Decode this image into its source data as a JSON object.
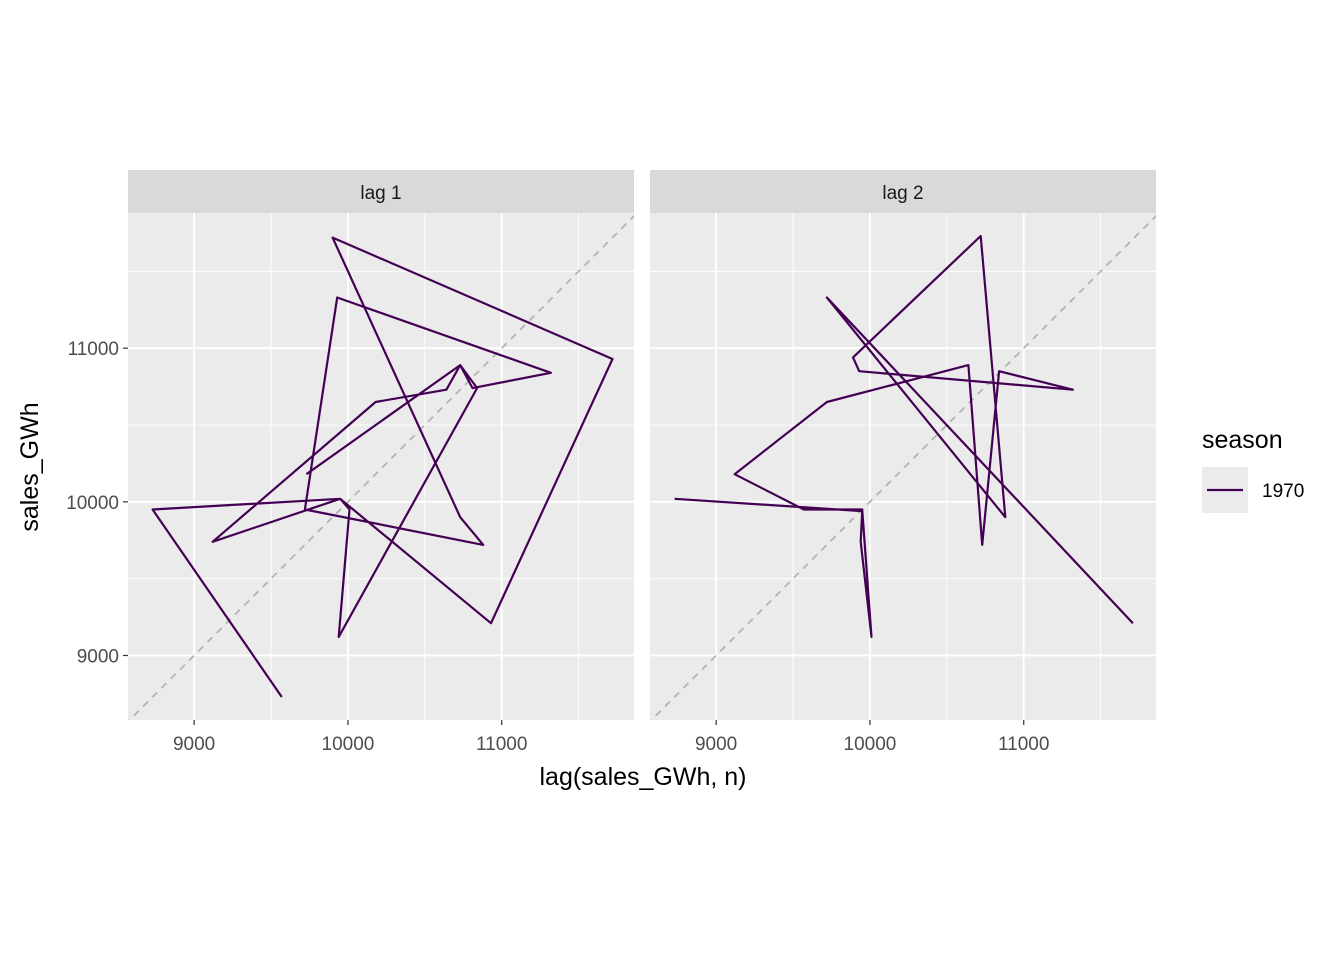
{
  "chart_data": {
    "type": "line",
    "title": "",
    "xlabel": "lag(sales_GWh, n)",
    "ylabel": "sales_GWh",
    "xlim": [
      8570,
      11860
    ],
    "ylim": [
      8580,
      11880
    ],
    "x_ticks": [
      9000,
      10000,
      11000
    ],
    "x_tick_labels": [
      "9000",
      "10000",
      "11000"
    ],
    "y_ticks": [
      9000,
      10000,
      11000
    ],
    "y_tick_labels": [
      "9000",
      "10000",
      "11000"
    ],
    "grid": true,
    "reference_line": "y = x, dashed",
    "legend": {
      "title": "season",
      "position": "right",
      "entries": [
        "1970"
      ]
    },
    "series_color": "#440154",
    "panels": [
      {
        "label": "lag 1",
        "series": [
          {
            "name": "1970",
            "x": [
              9570,
              8730,
              9950,
              9120,
              10180,
              10640,
              10730,
              10810,
              11320,
              9930,
              9720,
              10880,
              10730,
              9900,
              11720,
              10930,
              9950,
              10010,
              9940,
              10840,
              10730,
              9730
            ],
            "y": [
              8730,
              9950,
              10020,
              9740,
              10650,
              10730,
              10890,
              10740,
              10840,
              11330,
              9950,
              9720,
              9900,
              11720,
              10930,
              9210,
              10020,
              9950,
              9120,
              10740,
              10890,
              10180
            ]
          }
        ]
      },
      {
        "label": "lag 2",
        "series": [
          {
            "name": "1970",
            "x": [
              8730,
              9950,
              9940,
              10010,
              9950,
              9570,
              9120,
              9720,
              10640,
              10730,
              10840,
              11320,
              9930,
              9890,
              10720,
              10880,
              9720,
              11710
            ],
            "y": [
              10020,
              9940,
              9740,
              9120,
              9950,
              9950,
              10180,
              10650,
              10890,
              9720,
              10850,
              10730,
              10850,
              10940,
              11730,
              9900,
              11330,
              9210
            ]
          }
        ]
      }
    ]
  }
}
